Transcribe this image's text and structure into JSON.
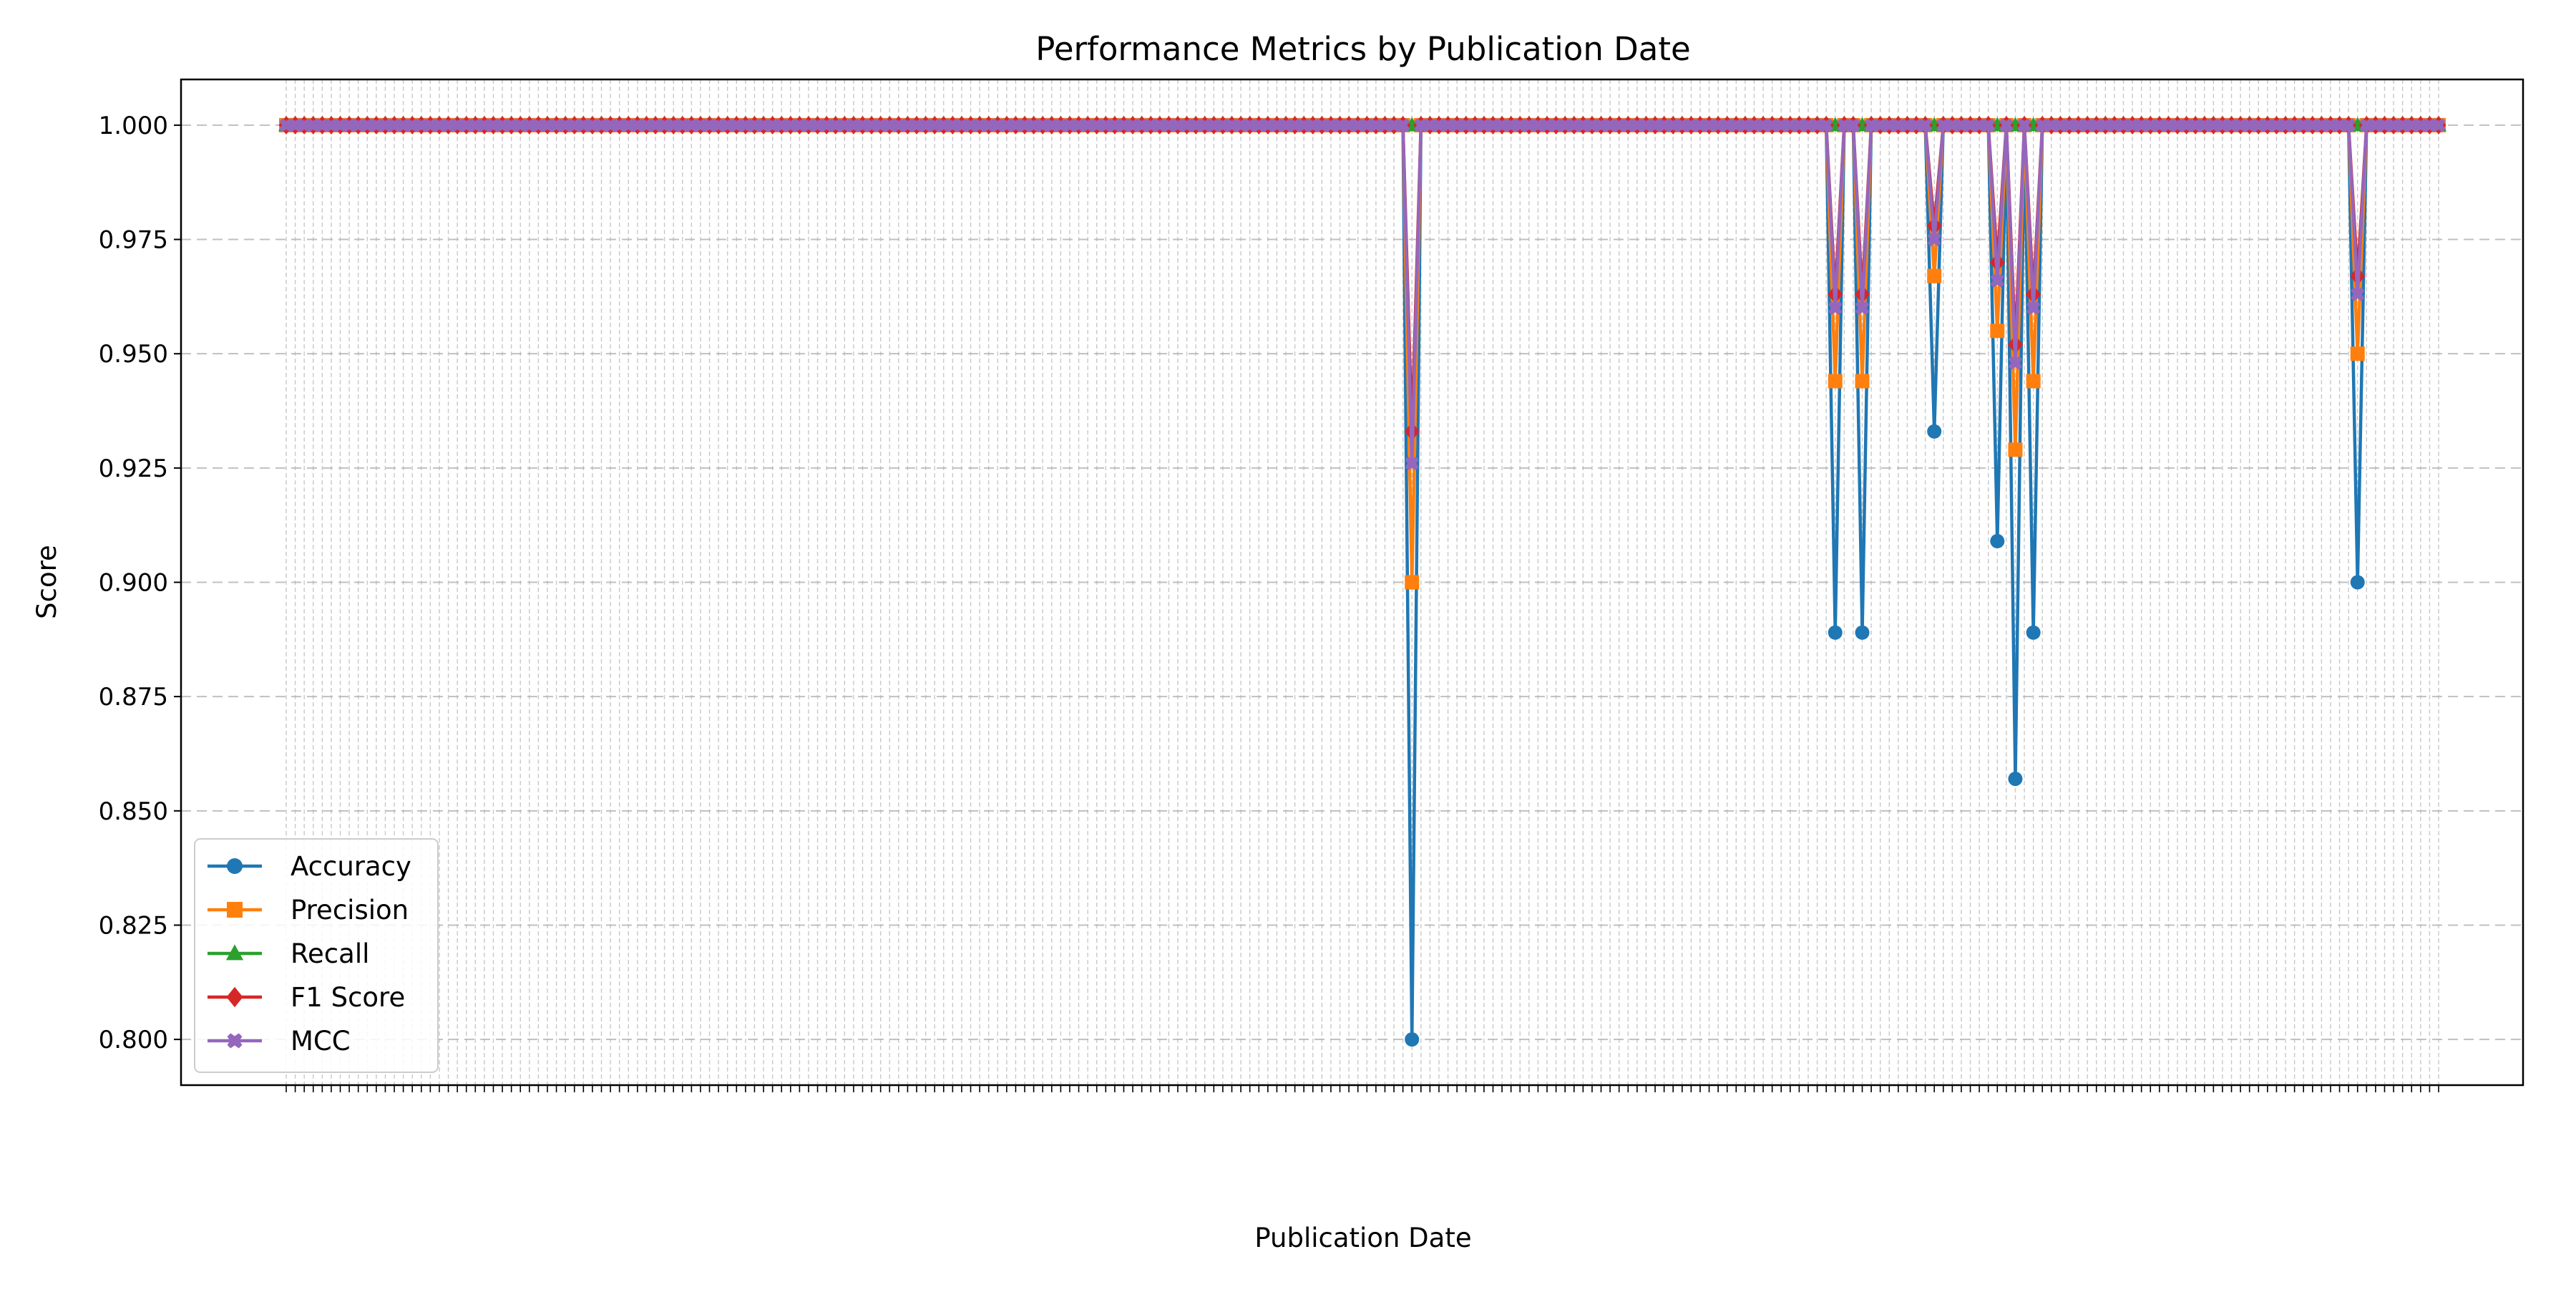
{
  "chart_data": {
    "type": "line",
    "title": "Performance Metrics by Publication Date",
    "xlabel": "Publication Date",
    "ylabel": "Score",
    "ylim": [
      0.79,
      1.01
    ],
    "yticks": [
      "0.800",
      "0.825",
      "0.850",
      "0.875",
      "0.900",
      "0.925",
      "0.950",
      "0.975",
      "1.000"
    ],
    "grid": true,
    "legend_position": "lower-left",
    "point_count": 240,
    "series": [
      {
        "name": "Accuracy",
        "color": "#1f77b4",
        "marker": "circle",
        "default": 1.0,
        "overrides": {
          "125": 0.8,
          "172": 0.889,
          "175": 0.889,
          "183": 0.933,
          "190": 0.909,
          "192": 0.857,
          "194": 0.889,
          "230": 0.9
        }
      },
      {
        "name": "Precision",
        "color": "#ff7f0e",
        "marker": "square",
        "default": 1.0,
        "overrides": {
          "125": 0.9,
          "172": 0.944,
          "175": 0.944,
          "183": 0.967,
          "190": 0.955,
          "192": 0.929,
          "194": 0.944,
          "230": 0.95
        }
      },
      {
        "name": "Recall",
        "color": "#2ca02c",
        "marker": "triangle",
        "default": 1.0,
        "overrides": {}
      },
      {
        "name": "F1 Score",
        "color": "#d62728",
        "marker": "diamond",
        "default": 1.0,
        "overrides": {
          "125": 0.933,
          "172": 0.963,
          "175": 0.963,
          "183": 0.978,
          "190": 0.97,
          "192": 0.952,
          "194": 0.963,
          "230": 0.967
        }
      },
      {
        "name": "MCC",
        "color": "#9467bd",
        "marker": "x",
        "default": 1.0,
        "overrides": {
          "125": 0.926,
          "172": 0.96,
          "175": 0.96,
          "183": 0.975,
          "190": 0.966,
          "192": 0.948,
          "194": 0.96,
          "230": 0.963
        }
      }
    ]
  }
}
